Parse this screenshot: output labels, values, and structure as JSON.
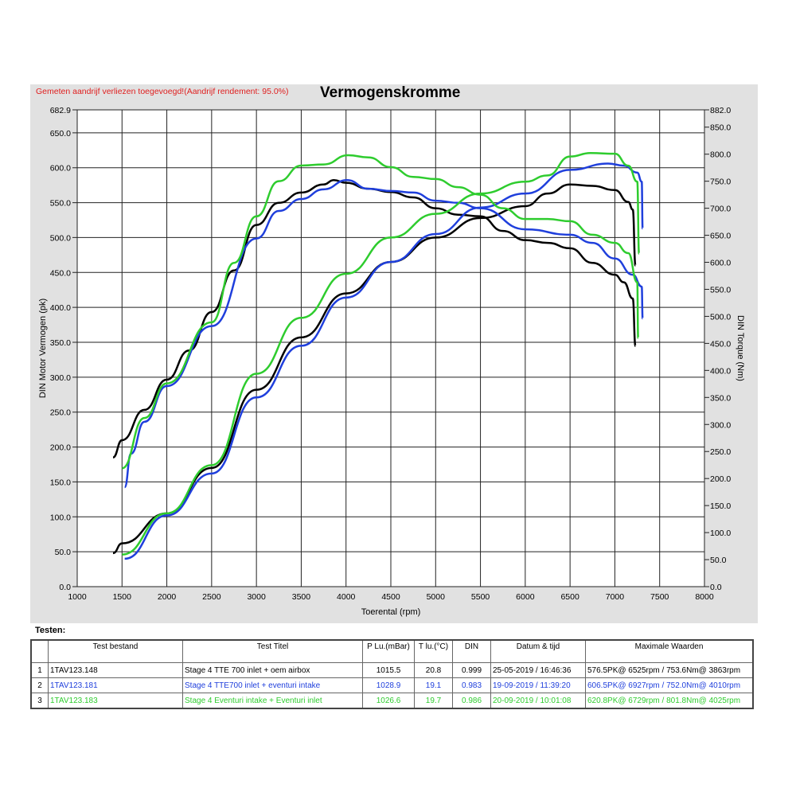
{
  "header": {
    "note": "Gemeten aandrijf verliezen toegevoegd!(Aandrijf rendement: 95.0%)"
  },
  "chart_data": {
    "type": "line",
    "title": "Vermogenskromme",
    "xlabel": "Toerental (rpm)",
    "ylabel": "DIN Motor Vermogen (pk)",
    "y2label": "DIN Torque (Nm)",
    "xlim": [
      1000,
      8000
    ],
    "ylim": [
      0,
      682.9
    ],
    "y2lim": [
      0,
      882.0
    ],
    "xticks": [
      "1000",
      "1500",
      "2000",
      "2500",
      "3000",
      "3500",
      "4000",
      "4500",
      "5000",
      "5500",
      "6000",
      "6500",
      "7000",
      "7500",
      "8000"
    ],
    "yticks": [
      "0.0",
      "50.0",
      "100.0",
      "150.0",
      "200.0",
      "250.0",
      "300.0",
      "350.0",
      "400.0",
      "450.0",
      "500.0",
      "550.0",
      "600.0",
      "650.0",
      "682.9"
    ],
    "y2ticks": [
      "0.0",
      "50.0",
      "100.0",
      "150.0",
      "200.0",
      "250.0",
      "300.0",
      "350.0",
      "400.0",
      "450.0",
      "500.0",
      "550.0",
      "600.0",
      "650.0",
      "700.0",
      "750.0",
      "800.0",
      "850.0",
      "882.0"
    ],
    "grid": true,
    "series": [
      {
        "name": "1 power",
        "color": "#000000",
        "axis": "left",
        "x": [
          1400,
          1500,
          2000,
          2500,
          3000,
          3500,
          4000,
          4500,
          5000,
          5500,
          6000,
          6250,
          6500,
          6750,
          7000,
          7150,
          7200,
          7230
        ],
        "y": [
          48,
          62,
          105,
          170,
          282,
          357,
          420,
          465,
          500,
          528,
          545,
          563,
          576,
          574,
          568,
          551,
          540,
          460
        ]
      },
      {
        "name": "1 torque",
        "color": "#000000",
        "axis": "right",
        "x": [
          1400,
          1500,
          1750,
          2000,
          2250,
          2500,
          2750,
          3000,
          3250,
          3500,
          3750,
          3863,
          4000,
          4250,
          4500,
          4750,
          5000,
          5250,
          5500,
          5750,
          6000,
          6250,
          6500,
          6750,
          7000,
          7100,
          7200,
          7230
        ],
        "y": [
          239,
          271,
          327,
          383,
          437,
          508,
          585,
          669,
          710,
          729,
          744,
          752,
          747,
          736,
          730,
          720,
          700,
          688,
          685,
          658,
          641,
          636,
          626,
          599,
          577,
          563,
          533,
          445
        ]
      },
      {
        "name": "2 power",
        "color": "#1f3fdc",
        "axis": "left",
        "x": [
          1530,
          2000,
          2500,
          3000,
          3500,
          4000,
          4500,
          5000,
          5500,
          6000,
          6500,
          6927,
          7100,
          7250,
          7300,
          7310
        ],
        "y": [
          40,
          102,
          162,
          271,
          345,
          414,
          465,
          505,
          543,
          563,
          597,
          606,
          603,
          593,
          580,
          513
        ]
      },
      {
        "name": "2 torque",
        "color": "#1f3fdc",
        "axis": "right",
        "x": [
          1530,
          1600,
          1750,
          2000,
          2500,
          3000,
          3250,
          3500,
          3750,
          4010,
          4250,
          4500,
          4750,
          5000,
          5250,
          5500,
          6000,
          6500,
          6750,
          7000,
          7200,
          7300,
          7310
        ],
        "y": [
          184,
          246,
          305,
          371,
          482,
          644,
          695,
          717,
          735,
          752,
          736,
          732,
          729,
          714,
          710,
          700,
          661,
          651,
          636,
          607,
          577,
          555,
          496
        ]
      },
      {
        "name": "3 power",
        "color": "#2ecc2e",
        "axis": "left",
        "x": [
          1500,
          2000,
          2500,
          3000,
          3500,
          4000,
          4500,
          5000,
          5500,
          6000,
          6250,
          6500,
          6729,
          7000,
          7150,
          7250,
          7270
        ],
        "y": [
          46,
          105,
          174,
          305,
          385,
          448,
          500,
          534,
          563,
          580,
          589,
          616,
          621,
          620,
          603,
          580,
          477
        ]
      },
      {
        "name": "3 torque",
        "color": "#2ecc2e",
        "axis": "right",
        "x": [
          1500,
          1750,
          2000,
          2500,
          2750,
          3000,
          3250,
          3500,
          3750,
          4025,
          4250,
          4500,
          4750,
          5000,
          5250,
          5500,
          5750,
          6000,
          6250,
          6500,
          6750,
          7000,
          7150,
          7250,
          7260
        ],
        "y": [
          219,
          312,
          376,
          489,
          599,
          685,
          750,
          779,
          781,
          798,
          794,
          776,
          758,
          754,
          739,
          725,
          700,
          680,
          680,
          676,
          651,
          636,
          617,
          563,
          460
        ]
      }
    ]
  },
  "table": {
    "label": "Testen:",
    "headers": [
      "",
      "Test bestand",
      "Test Titel",
      "P Lu.(mBar)",
      "T lu.(°C)",
      "DIN",
      "Datum & tijd",
      "Maximale Waarden"
    ],
    "rows": [
      {
        "color": "#000000",
        "cells": [
          "1",
          "1TAV123.148",
          "Stage 4 TTE 700  inlet + oem airbox",
          "1015.5",
          "20.8",
          "0.999",
          "25-05-2019 / 16:46:36",
          "576.5PK@ 6525rpm / 753.6Nm@ 3863rpm"
        ]
      },
      {
        "color": "#1f3fdc",
        "cells": [
          "2",
          "1TAV123.181",
          "Stage 4 TTE700 inlet + eventuri intake",
          "1028.9",
          "19.1",
          "0.983",
          "19-09-2019 / 11:39:20",
          "606.5PK@ 6927rpm / 752.0Nm@ 4010rpm"
        ]
      },
      {
        "color": "#2ecc2e",
        "cells": [
          "3",
          "1TAV123.183",
          "Stage 4 Eventuri intake + Eventuri inlet",
          "1026.6",
          "19.7",
          "0.986",
          "20-09-2019 / 10:01:08",
          "620.8PK@ 6729rpm / 801.8Nm@ 4025rpm"
        ]
      }
    ]
  }
}
